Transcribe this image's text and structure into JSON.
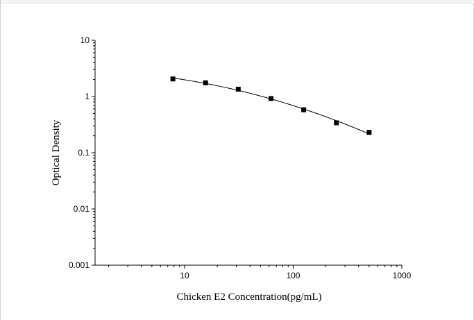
{
  "chart_data": {
    "type": "scatter",
    "title": "",
    "xlabel": "Chicken E2 Concentration(pg/mL)",
    "ylabel": "Optical Density",
    "xscale": "log",
    "yscale": "log",
    "xlim": [
      1.5,
      1000
    ],
    "ylim": [
      0.001,
      10
    ],
    "x_ticks": [
      10,
      100,
      1000
    ],
    "x_tick_labels": [
      "10",
      "100",
      "1000"
    ],
    "y_ticks": [
      0.001,
      0.01,
      0.1,
      1,
      10
    ],
    "y_tick_labels": [
      "0.001",
      "0.01",
      "0.1",
      "1",
      "10"
    ],
    "grid": false,
    "series": [
      {
        "marker": "square",
        "line": "smooth fitted curve",
        "x": [
          7.8,
          15.6,
          31.2,
          62.5,
          125,
          250,
          500
        ],
        "y": [
          2.05,
          1.75,
          1.35,
          0.92,
          0.58,
          0.34,
          0.23
        ]
      }
    ],
    "colors": {
      "marker": "#000000",
      "line": "#000000",
      "axis": "#000000"
    }
  }
}
